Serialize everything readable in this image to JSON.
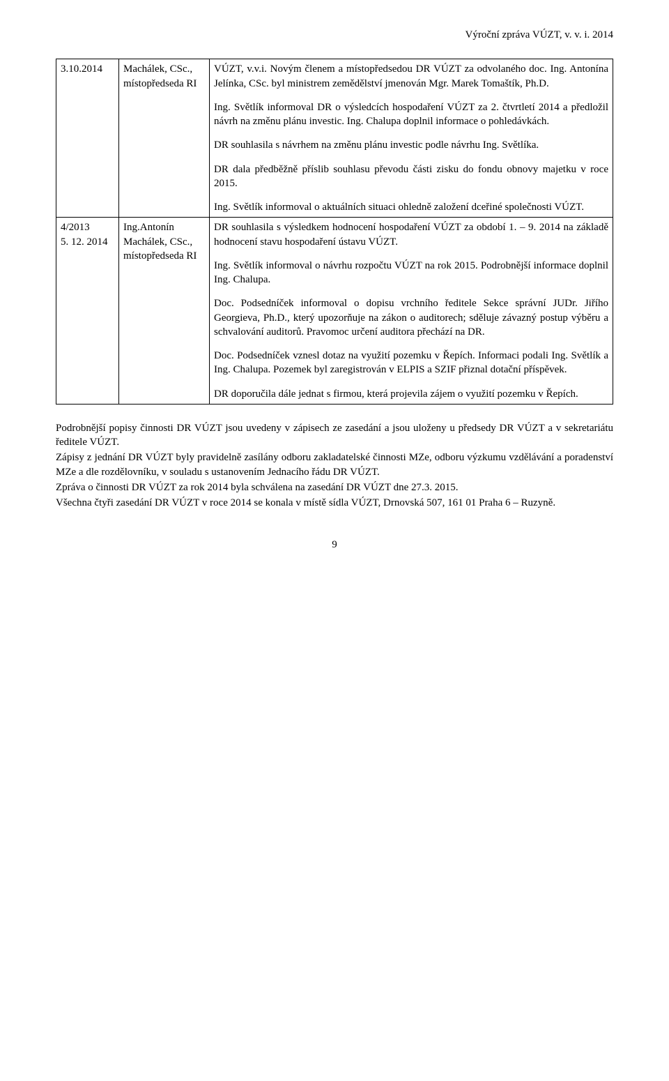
{
  "header": "Výroční zpráva VÚZT, v. v. i. 2014",
  "table": {
    "rows": [
      {
        "date": "3.10.2014",
        "who": "Machálek, CSc., místopředseda RI",
        "paras": [
          "VÚZT, v.v.i. Novým členem a místopředsedou DR VÚZT za odvolaného doc. Ing. Antonína Jelínka, CSc. byl ministrem zemědělství jmenován Mgr. Marek Tomaštík, Ph.D.",
          "Ing. Světlík informoval DR o výsledcích hospodaření VÚZT za 2. čtvrtletí 2014 a předložil návrh na změnu plánu investic. Ing. Chalupa doplnil informace o pohledávkách.",
          "DR souhlasila s návrhem na změnu plánu investic podle návrhu Ing. Světlíka.",
          "DR dala předběžně příslib souhlasu převodu části zisku do fondu obnovy majetku v roce 2015.",
          "Ing. Světlík informoval o aktuálních situaci ohledně založení dceřiné společnosti VÚZT."
        ]
      },
      {
        "date": "4/2013\n5. 12. 2014",
        "who": "Ing.Antonín Machálek, CSc., místopředseda RI",
        "paras": [
          "DR souhlasila s výsledkem hodnocení hospodaření VÚZT za období 1. – 9. 2014 na základě hodnocení stavu hospodaření ústavu VÚZT.",
          "Ing. Světlík informoval o návrhu rozpočtu VÚZT na rok 2015. Podrobnější informace doplnil Ing. Chalupa.",
          "Doc. Podsedníček informoval o dopisu vrchního ředitele Sekce správní JUDr. Jiřího Georgieva, Ph.D., který upozorňuje na zákon o auditorech; sděluje závazný postup výběru a schvalování auditorů. Pravomoc určení auditora přechází na DR.",
          "Doc. Podsedníček vznesl dotaz na využití pozemku v Řepích. Informaci podali Ing. Světlík a Ing. Chalupa. Pozemek byl zaregistrován v ELPIS a SZIF přiznal dotační příspěvek.",
          "DR doporučila dále jednat s firmou, která projevila zájem o využití pozemku v Řepích."
        ]
      }
    ]
  },
  "bodyParas": [
    "Podrobnější popisy činnosti DR VÚZT jsou uvedeny v zápisech ze zasedání a jsou uloženy u předsedy DR VÚZT a v sekretariátu ředitele VÚZT.",
    "Zápisy z jednání DR VÚZT byly pravidelně zasílány odboru zakladatelské činnosti MZe, odboru výzkumu vzdělávání a poradenství MZe a dle rozdělovníku, v souladu s ustanovením Jednacího řádu DR VÚZT.",
    "Zpráva o činnosti DR VÚZT za rok 2014 byla schválena na zasedání DR VÚZT dne 27.3. 2015.",
    "Všechna čtyři zasedání DR VÚZT v roce 2014 se konala v místě sídla VÚZT, Drnovská 507, 161 01 Praha 6 – Ruzyně."
  ],
  "pageNumber": "9"
}
